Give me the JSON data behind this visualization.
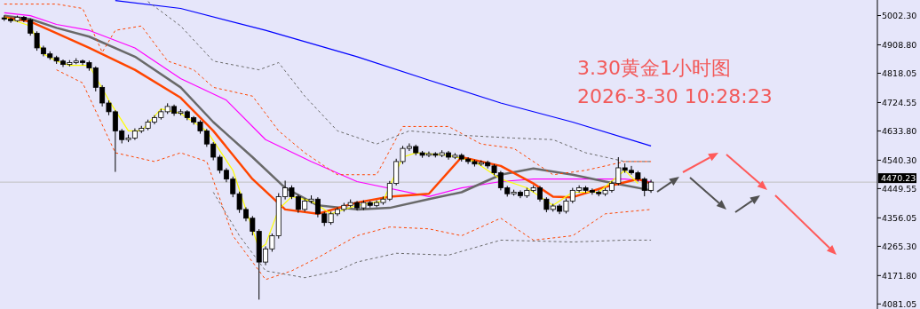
{
  "chart_data": {
    "type": "candlestick",
    "title": "3.30黄金1小时图",
    "subtitle": "2026-3-30 10:28:23",
    "categories": [
      null,
      null,
      null,
      null,
      null,
      null,
      null,
      null,
      null,
      null,
      null,
      null,
      null,
      null,
      null,
      null,
      null,
      null,
      null,
      null,
      null,
      null,
      null,
      null,
      null,
      null,
      null,
      null,
      null,
      null,
      null,
      null,
      null,
      null,
      null,
      null,
      null,
      null,
      null,
      null,
      null,
      null,
      null,
      null,
      null,
      null,
      null,
      null,
      null,
      null,
      null,
      null,
      null,
      null,
      null,
      null,
      null,
      null,
      null,
      null,
      null,
      null,
      null,
      null,
      null,
      null,
      null,
      null,
      null,
      null,
      null,
      null,
      null,
      null,
      null,
      null,
      null,
      null,
      null,
      null,
      null,
      null,
      null,
      null,
      null,
      null,
      null,
      null,
      null,
      null,
      null,
      null,
      null,
      null,
      null,
      null,
      null,
      null,
      null,
      null,
      null,
      null,
      null,
      null,
      null,
      null,
      null,
      null,
      null,
      null,
      null,
      null,
      null,
      null,
      null,
      null,
      null,
      null,
      null,
      null,
      null,
      null,
      null,
      null,
      null,
      null,
      null,
      null,
      null,
      null,
      null,
      null,
      null,
      null
    ],
    "ohlc": [
      [
        4995,
        5003,
        4985,
        4991
      ],
      [
        4991,
        4996,
        4979,
        4986
      ],
      [
        4986,
        5002,
        4982,
        4997
      ],
      [
        4997,
        5001,
        4981,
        4988
      ],
      [
        4988,
        4993,
        4938,
        4946
      ],
      [
        4946,
        4952,
        4890,
        4899
      ],
      [
        4899,
        4906,
        4872,
        4880
      ],
      [
        4880,
        4888,
        4861,
        4868
      ],
      [
        4868,
        4874,
        4848,
        4857
      ],
      [
        4857,
        4862,
        4838,
        4846
      ],
      [
        4846,
        4860,
        4840,
        4852
      ],
      [
        4852,
        4866,
        4847,
        4857
      ],
      [
        4857,
        4862,
        4844,
        4852
      ],
      [
        4852,
        4858,
        4826,
        4835
      ],
      [
        4835,
        4840,
        4760,
        4773
      ],
      [
        4773,
        4780,
        4712,
        4723
      ],
      [
        4723,
        4731,
        4684,
        4695
      ],
      [
        4695,
        4700,
        4503,
        4634
      ],
      [
        4634,
        4640,
        4594,
        4606
      ],
      [
        4606,
        4622,
        4598,
        4611
      ],
      [
        4611,
        4642,
        4605,
        4634
      ],
      [
        4634,
        4650,
        4627,
        4642
      ],
      [
        4642,
        4670,
        4636,
        4662
      ],
      [
        4662,
        4684,
        4655,
        4676
      ],
      [
        4676,
        4704,
        4670,
        4695
      ],
      [
        4695,
        4722,
        4688,
        4712
      ],
      [
        4712,
        4718,
        4682,
        4690
      ],
      [
        4690,
        4703,
        4684,
        4695
      ],
      [
        4695,
        4700,
        4668,
        4676
      ],
      [
        4676,
        4681,
        4654,
        4662
      ],
      [
        4662,
        4668,
        4625,
        4634
      ],
      [
        4634,
        4640,
        4583,
        4592
      ],
      [
        4592,
        4598,
        4540,
        4550
      ],
      [
        4550,
        4557,
        4498,
        4508
      ],
      [
        4508,
        4515,
        4470,
        4480
      ],
      [
        4480,
        4488,
        4422,
        4433
      ],
      [
        4433,
        4440,
        4372,
        4383
      ],
      [
        4383,
        4390,
        4345,
        4355
      ],
      [
        4355,
        4362,
        4300,
        4313
      ],
      [
        4313,
        4320,
        4095,
        4215
      ],
      [
        4215,
        4265,
        4205,
        4257
      ],
      [
        4257,
        4306,
        4248,
        4299
      ],
      [
        4299,
        4435,
        4290,
        4424
      ],
      [
        4424,
        4475,
        4415,
        4452
      ],
      [
        4452,
        4460,
        4416,
        4424
      ],
      [
        4424,
        4430,
        4372,
        4383
      ],
      [
        4383,
        4418,
        4376,
        4410
      ],
      [
        4410,
        4428,
        4402,
        4416
      ],
      [
        4416,
        4422,
        4358,
        4369
      ],
      [
        4369,
        4375,
        4330,
        4341
      ],
      [
        4341,
        4376,
        4334,
        4369
      ],
      [
        4369,
        4390,
        4362,
        4383
      ],
      [
        4383,
        4404,
        4376,
        4396
      ],
      [
        4396,
        4415,
        4390,
        4405
      ],
      [
        4405,
        4410,
        4380,
        4388
      ],
      [
        4388,
        4412,
        4381,
        4405
      ],
      [
        4405,
        4410,
        4389,
        4396
      ],
      [
        4396,
        4412,
        4390,
        4405
      ],
      [
        4405,
        4424,
        4398,
        4416
      ],
      [
        4416,
        4474,
        4410,
        4466
      ],
      [
        4466,
        4545,
        4460,
        4536
      ],
      [
        4536,
        4586,
        4528,
        4578
      ],
      [
        4578,
        4594,
        4570,
        4584
      ],
      [
        4584,
        4590,
        4556,
        4564
      ],
      [
        4564,
        4570,
        4548,
        4556
      ],
      [
        4556,
        4568,
        4550,
        4561
      ],
      [
        4561,
        4566,
        4549,
        4556
      ],
      [
        4556,
        4572,
        4550,
        4564
      ],
      [
        4564,
        4570,
        4542,
        4550
      ],
      [
        4550,
        4563,
        4544,
        4556
      ],
      [
        4556,
        4562,
        4536,
        4544
      ],
      [
        4544,
        4550,
        4528,
        4536
      ],
      [
        4536,
        4542,
        4520,
        4528
      ],
      [
        4528,
        4540,
        4522,
        4533
      ],
      [
        4533,
        4539,
        4514,
        4522
      ],
      [
        4522,
        4528,
        4492,
        4500
      ],
      [
        4500,
        4506,
        4444,
        4452
      ],
      [
        4452,
        4458,
        4424,
        4433
      ],
      [
        4433,
        4446,
        4427,
        4438
      ],
      [
        4438,
        4444,
        4419,
        4427
      ],
      [
        4427,
        4452,
        4420,
        4444
      ],
      [
        4444,
        4460,
        4438,
        4452
      ],
      [
        4452,
        4458,
        4408,
        4416
      ],
      [
        4416,
        4422,
        4374,
        4383
      ],
      [
        4383,
        4401,
        4376,
        4394
      ],
      [
        4394,
        4400,
        4368,
        4377
      ],
      [
        4377,
        4418,
        4370,
        4410
      ],
      [
        4410,
        4452,
        4403,
        4444
      ],
      [
        4444,
        4460,
        4437,
        4452
      ],
      [
        4452,
        4458,
        4436,
        4444
      ],
      [
        4444,
        4450,
        4430,
        4438
      ],
      [
        4438,
        4444,
        4425,
        4433
      ],
      [
        4433,
        4452,
        4426,
        4444
      ],
      [
        4444,
        4474,
        4437,
        4466
      ],
      [
        4466,
        4550,
        4460,
        4516
      ],
      [
        4516,
        4530,
        4500,
        4508
      ],
      [
        4508,
        4522,
        4494,
        4500
      ],
      [
        4500,
        4506,
        4472,
        4480
      ],
      [
        4480,
        4486,
        4425,
        4444
      ],
      [
        4444,
        4478,
        4436,
        4470.23
      ],
      null,
      null,
      null,
      null,
      null,
      null,
      null,
      null,
      null,
      null,
      null,
      null,
      null,
      null,
      null,
      null,
      null,
      null,
      null,
      null,
      null,
      null,
      null,
      null,
      null,
      null,
      null,
      null,
      null,
      null,
      null,
      null,
      null,
      null
    ],
    "series": [
      {
        "type": "line",
        "color": "#0000ff",
        "values": [
          null,
          null,
          null,
          null,
          null,
          null,
          null,
          null,
          null,
          null,
          null,
          null,
          null,
          null,
          null,
          null,
          null,
          5050,
          null,
          null,
          null,
          null,
          null,
          null,
          null,
          null,
          null,
          5025,
          null,
          null,
          null,
          null,
          null,
          null,
          null,
          null,
          null,
          null,
          null,
          null,
          4955,
          null,
          null,
          null,
          null,
          null,
          null,
          null,
          null,
          null,
          null,
          null,
          null,
          null,
          4871,
          null,
          null,
          null,
          null,
          null,
          null,
          null,
          null,
          null,
          null,
          4796,
          null,
          null,
          null,
          null,
          null,
          null,
          null,
          null,
          null,
          null,
          4723,
          null,
          null,
          null,
          null,
          null,
          null,
          null,
          null,
          null,
          null,
          4662,
          null,
          null,
          null,
          null,
          null,
          null,
          null,
          null,
          null,
          null,
          null,
          4586,
          null,
          null,
          null,
          null,
          null,
          null,
          null,
          null,
          null,
          null,
          null,
          null,
          null,
          null,
          null,
          null,
          null,
          null,
          null,
          null,
          null,
          null,
          null,
          null,
          null,
          null,
          null,
          null,
          null,
          null,
          null,
          null,
          null,
          null
        ]
      },
      {
        "type": "line",
        "color": "#ff00ff",
        "values": [
          5011,
          null,
          null,
          null,
          5002,
          null,
          null,
          null,
          4974,
          null,
          null,
          null,
          null,
          4955,
          null,
          null,
          null,
          null,
          null,
          null,
          4899,
          null,
          null,
          null,
          null,
          null,
          null,
          4801,
          null,
          null,
          null,
          null,
          null,
          null,
          4732,
          null,
          null,
          null,
          null,
          null,
          4606,
          null,
          null,
          null,
          null,
          null,
          null,
          4536,
          null,
          null,
          null,
          null,
          null,
          null,
          4472,
          null,
          null,
          null,
          null,
          null,
          null,
          null,
          null,
          null,
          null,
          4424,
          null,
          null,
          null,
          null,
          4452,
          null,
          null,
          null,
          null,
          null,
          4472,
          null,
          null,
          null,
          null,
          4480,
          null,
          null,
          null,
          null,
          null,
          null,
          4480,
          null,
          null,
          null,
          null,
          null,
          null,
          4480,
          null,
          null,
          null,
          4472,
          null,
          null,
          null,
          null,
          null,
          null,
          null,
          null,
          null,
          null,
          null,
          null,
          null,
          null,
          null,
          null,
          null,
          null,
          null,
          null,
          null,
          null,
          null,
          null,
          null,
          null,
          null,
          null,
          null,
          null,
          null,
          null,
          null,
          null
        ]
      },
      {
        "type": "line",
        "color": "#696969",
        "values": [
          5002,
          null,
          null,
          null,
          4991,
          null,
          null,
          null,
          4963,
          null,
          null,
          null,
          null,
          4935,
          null,
          null,
          null,
          null,
          null,
          null,
          4871,
          null,
          null,
          null,
          null,
          null,
          null,
          4773,
          null,
          null,
          null,
          null,
          4662,
          null,
          null,
          null,
          null,
          null,
          4550,
          null,
          null,
          null,
          null,
          4452,
          null,
          null,
          null,
          null,
          4396,
          null,
          null,
          null,
          null,
          null,
          4383,
          null,
          null,
          null,
          null,
          4388,
          null,
          null,
          null,
          null,
          null,
          4416,
          null,
          null,
          null,
          null,
          4438,
          null,
          null,
          null,
          null,
          null,
          4494,
          null,
          null,
          null,
          null,
          4514,
          null,
          null,
          null,
          null,
          null,
          4494,
          null,
          null,
          null,
          null,
          4472,
          null,
          null,
          null,
          null,
          null,
          null,
          4444,
          null,
          null,
          null,
          null,
          null,
          null,
          null,
          null,
          null,
          null,
          null,
          null,
          null,
          null,
          null,
          null,
          null,
          null,
          null,
          null,
          null,
          null,
          null,
          null,
          null,
          null,
          null,
          null,
          null,
          null,
          null,
          null,
          null,
          null
        ]
      },
      {
        "type": "line",
        "color": "#ff4500",
        "values": [
          4997,
          null,
          null,
          null,
          4983,
          null,
          null,
          null,
          4946,
          null,
          null,
          null,
          null,
          4899,
          null,
          null,
          null,
          null,
          null,
          null,
          4829,
          null,
          null,
          null,
          null,
          null,
          null,
          4740,
          null,
          null,
          null,
          null,
          4634,
          null,
          null,
          null,
          null,
          null,
          4480,
          null,
          null,
          null,
          null,
          4383,
          null,
          null,
          null,
          null,
          4369,
          null,
          null,
          null,
          null,
          null,
          4405,
          null,
          null,
          null,
          null,
          4424,
          null,
          null,
          null,
          null,
          null,
          4433,
          null,
          null,
          null,
          null,
          4550,
          null,
          null,
          null,
          null,
          null,
          4522,
          null,
          null,
          null,
          null,
          4466,
          null,
          null,
          4424,
          null,
          null,
          4422,
          null,
          null,
          null,
          null,
          4455,
          null,
          null,
          null,
          null,
          4480,
          null,
          4466,
          null,
          null,
          null,
          null,
          null,
          null,
          null,
          null,
          null,
          null,
          null,
          null,
          null,
          null,
          null,
          null,
          null,
          null,
          null,
          null,
          null,
          null,
          null,
          null,
          null,
          null,
          null,
          null,
          null,
          null,
          null,
          null,
          null,
          null
        ]
      },
      {
        "type": "line",
        "color": "#ffff00",
        "values": [
          4997,
          null,
          null,
          null,
          4969,
          null,
          4880,
          null,
          4857,
          null,
          4843,
          null,
          null,
          4843,
          null,
          null,
          4732,
          null,
          null,
          4634,
          null,
          4634,
          null,
          null,
          4704,
          null,
          null,
          4690,
          null,
          null,
          null,
          4634,
          null,
          null,
          null,
          4508,
          null,
          null,
          null,
          4257,
          4271,
          null,
          4383,
          null,
          4424,
          null,
          null,
          4410,
          null,
          null,
          4369,
          null,
          null,
          null,
          4396,
          null,
          null,
          null,
          4410,
          null,
          null,
          4550,
          null,
          4564,
          null,
          null,
          null,
          null,
          4556,
          null,
          null,
          null,
          4536,
          null,
          null,
          null,
          4480,
          null,
          null,
          null,
          4452,
          null,
          null,
          null,
          4396,
          null,
          null,
          4438,
          null,
          null,
          null,
          4438,
          null,
          null,
          null,
          4508,
          null,
          4466,
          null,
          null,
          null,
          null,
          null,
          null,
          null,
          null,
          null,
          null,
          null,
          null,
          null,
          null,
          null,
          null,
          null,
          null,
          null,
          null,
          null,
          null,
          null,
          null,
          null,
          null,
          null,
          null,
          null,
          null,
          null,
          null,
          null,
          null,
          null,
          null
        ]
      },
      {
        "type": "line",
        "color": "#ff4500",
        "line_style": "dashed",
        "values": [
          5039,
          null,
          null,
          null,
          null,
          null,
          null,
          null,
          5039,
          null,
          null,
          null,
          5025,
          null,
          null,
          4885,
          null,
          4955,
          null,
          null,
          null,
          4969,
          null,
          null,
          null,
          4857,
          null,
          null,
          null,
          4829,
          null,
          null,
          4773,
          null,
          null,
          null,
          null,
          null,
          4745,
          null,
          null,
          null,
          4634,
          null,
          null,
          null,
          4564,
          null,
          null,
          null,
          null,
          4494,
          null,
          null,
          null,
          null,
          null,
          4494,
          null,
          null,
          null,
          4648,
          null,
          null,
          null,
          null,
          null,
          null,
          4648,
          null,
          null,
          null,
          null,
          4592,
          null,
          null,
          null,
          null,
          4578,
          null,
          null,
          null,
          null,
          null,
          4494,
          null,
          null,
          null,
          null,
          4508,
          null,
          null,
          null,
          null,
          null,
          4536,
          null,
          null,
          null,
          4536,
          null,
          null,
          null,
          null,
          null,
          null,
          null,
          null,
          null,
          null,
          null,
          null,
          null,
          null,
          null,
          null,
          null,
          null,
          null,
          null,
          null,
          null,
          null,
          null,
          null,
          null,
          null,
          null,
          null,
          null,
          null,
          null,
          null,
          null
        ]
      },
      {
        "type": "line",
        "color": "#ff4500",
        "line_style": "dashed",
        "values": [
          null,
          null,
          null,
          null,
          null,
          null,
          null,
          null,
          4829,
          null,
          null,
          null,
          4787,
          null,
          null,
          null,
          null,
          4564,
          null,
          null,
          null,
          null,
          null,
          4536,
          null,
          null,
          null,
          4564,
          null,
          null,
          null,
          4536,
          null,
          null,
          null,
          4299,
          null,
          null,
          null,
          null,
          4159,
          null,
          null,
          null,
          4187,
          null,
          null,
          null,
          4229,
          null,
          null,
          null,
          null,
          null,
          4299,
          null,
          null,
          null,
          null,
          4327,
          null,
          null,
          null,
          null,
          null,
          4321,
          null,
          null,
          null,
          null,
          4299,
          null,
          null,
          null,
          null,
          null,
          4355,
          null,
          null,
          null,
          null,
          4285,
          null,
          null,
          null,
          null,
          null,
          4299,
          null,
          null,
          null,
          null,
          4369,
          null,
          null,
          null,
          null,
          null,
          null,
          4383,
          null,
          null,
          null,
          null,
          null,
          null,
          null,
          null,
          null,
          null,
          null,
          null,
          null,
          null,
          null,
          null,
          null,
          null,
          null,
          null,
          null,
          null,
          null,
          null,
          null,
          null,
          null,
          null,
          null,
          null,
          null,
          null,
          null,
          null
        ]
      },
      {
        "type": "line",
        "color": "#696969",
        "line_style": "dashed",
        "values": [
          null,
          null,
          null,
          null,
          null,
          null,
          null,
          null,
          null,
          null,
          null,
          null,
          null,
          null,
          null,
          null,
          null,
          null,
          null,
          null,
          null,
          null,
          5047,
          null,
          null,
          null,
          null,
          4969,
          null,
          null,
          null,
          null,
          4857,
          null,
          null,
          null,
          null,
          null,
          null,
          4829,
          null,
          null,
          4852,
          null,
          null,
          null,
          4745,
          null,
          null,
          null,
          null,
          4634,
          null,
          null,
          null,
          null,
          null,
          4592,
          null,
          null,
          null,
          null,
          4634,
          null,
          null,
          null,
          null,
          null,
          null,
          null,
          4620,
          null,
          null,
          null,
          null,
          null,
          null,
          null,
          4611,
          null,
          null,
          null,
          null,
          null,
          4606,
          null,
          null,
          null,
          null,
          4564,
          null,
          null,
          null,
          null,
          null,
          4536,
          null,
          null,
          null,
          4536,
          null,
          null,
          null,
          null,
          null,
          null,
          null,
          null,
          null,
          null,
          null,
          null,
          null,
          null,
          null,
          null,
          null,
          null,
          null,
          null,
          null,
          null,
          null,
          null,
          null,
          null,
          null,
          null,
          null,
          null,
          null,
          null,
          null,
          null
        ]
      },
      {
        "type": "line",
        "color": "#696969",
        "line_style": "dashed",
        "values": [
          null,
          null,
          null,
          null,
          null,
          null,
          null,
          null,
          null,
          null,
          null,
          null,
          null,
          null,
          null,
          null,
          null,
          null,
          null,
          null,
          null,
          null,
          null,
          null,
          null,
          null,
          null,
          null,
          null,
          null,
          null,
          null,
          4438,
          null,
          null,
          null,
          4299,
          null,
          null,
          null,
          4187,
          null,
          null,
          null,
          null,
          null,
          4165,
          null,
          null,
          null,
          null,
          4187,
          null,
          null,
          4215,
          null,
          null,
          null,
          null,
          null,
          4243,
          null,
          null,
          null,
          null,
          null,
          null,
          null,
          4237,
          null,
          null,
          null,
          null,
          null,
          null,
          null,
          4285,
          null,
          null,
          null,
          null,
          null,
          null,
          null,
          null,
          null,
          null,
          4279,
          null,
          null,
          null,
          null,
          null,
          null,
          null,
          4285,
          null,
          null,
          null,
          4285,
          null,
          null,
          null,
          null,
          null,
          null,
          null,
          null,
          null,
          null,
          null,
          null,
          null,
          null,
          null,
          null,
          null,
          null,
          null,
          null,
          null,
          null,
          null,
          null,
          null,
          null,
          null,
          null,
          null,
          null,
          null,
          null,
          null,
          null
        ]
      }
    ],
    "ylim": [
      4065,
      5052
    ],
    "yticks": [
      {
        "value": 5002.3,
        "label": "5002.30"
      },
      {
        "value": 4908.8,
        "label": "4908.80"
      },
      {
        "value": 4818.05,
        "label": "4818.05"
      },
      {
        "value": 4724.55,
        "label": "4724.55"
      },
      {
        "value": 4633.8,
        "label": "4633.80"
      },
      {
        "value": 4540.3,
        "label": "4540.30"
      },
      {
        "value": 4449.55,
        "label": "4449.55"
      },
      {
        "value": 4356.05,
        "label": "4356.05"
      },
      {
        "value": 4265.3,
        "label": "4265.30"
      },
      {
        "value": 4171.8,
        "label": "4171.80"
      },
      {
        "value": 4081.05,
        "label": "4081.05"
      }
    ],
    "ref_lines": [
      {
        "axis": "y",
        "value": 4470.23,
        "label": "4470.23",
        "color": "#c0c0c0"
      }
    ],
    "tick_labels": "y"
  }
}
